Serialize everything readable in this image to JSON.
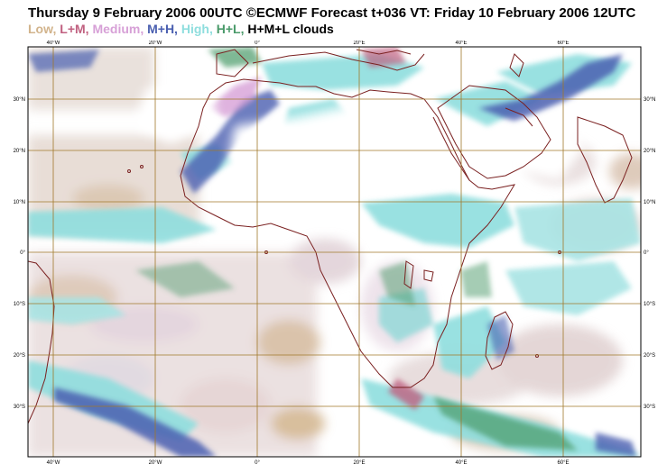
{
  "title": "Thursday 9 February 2006 00UTC ©ECMWF Forecast t+036 VT: Friday 10 February 2006 12UTC",
  "legend": [
    {
      "label": "Low, ",
      "color": "#d2b48c"
    },
    {
      "label": "L+M, ",
      "color": "#c06080"
    },
    {
      "label": "Medium, ",
      "color": "#d7a0d7"
    },
    {
      "label": "M+H, ",
      "color": "#4a5fb0"
    },
    {
      "label": "High, ",
      "color": "#8fdede"
    },
    {
      "label": "H+L, ",
      "color": "#4a9a6a"
    },
    {
      "label": "H+M+L clouds",
      "color": "#000000"
    }
  ],
  "map": {
    "lon_labels": [
      "40°W",
      "20°W",
      "0°",
      "20°E",
      "40°E",
      "60°E"
    ],
    "lat_labels": [
      "30°N",
      "20°N",
      "10°N",
      "0°",
      "10°S",
      "20°S",
      "30°S"
    ],
    "grid_color": "#a0782a",
    "coast_color": "#7a2020"
  }
}
